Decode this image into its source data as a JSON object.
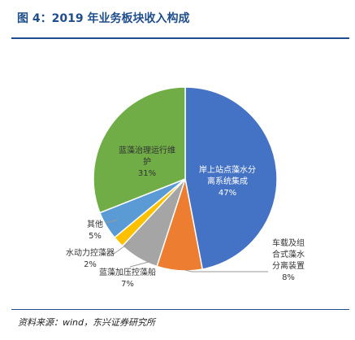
{
  "figure": {
    "title": "图 4：2019 年业务板块收入构成",
    "source": "资料来源：wind，东兴证券研究所"
  },
  "chart_data": {
    "type": "pie",
    "title": "",
    "slices": [
      {
        "name": "岸上站点藻水分离系统集成",
        "value": 47,
        "value_label": "47%",
        "color": "#4472C4",
        "label_lines": [
          "岸上站点藻水分",
          "离系统集成",
          "47%"
        ],
        "label_color": "#ffffff"
      },
      {
        "name": "车载及组合式藻水分离装置",
        "value": 8,
        "value_label": "8%",
        "color": "#ED7D31",
        "label_lines": [
          "车载及组",
          "合式藻水",
          "分离装置",
          "8%"
        ],
        "label_color": "#333333"
      },
      {
        "name": "蓝藻加压控藻船",
        "value": 7,
        "value_label": "7%",
        "color": "#A5A5A5",
        "label_lines": [
          "蓝藻加压控藻船",
          "7%"
        ],
        "label_color": "#333333"
      },
      {
        "name": "水动力控藻器",
        "value": 2,
        "value_label": "2%",
        "color": "#FFC000",
        "label_lines": [
          "水动力控藻器",
          "2%"
        ],
        "label_color": "#333333"
      },
      {
        "name": "其他",
        "value": 5,
        "value_label": "5%",
        "color": "#5B9BD5",
        "label_lines": [
          "其他",
          "5%"
        ],
        "label_color": "#333333"
      },
      {
        "name": "蓝藻治理运行维护",
        "value": 31,
        "value_label": "31%",
        "color": "#70AD47",
        "label_lines": [
          "蓝藻治理运行维",
          "护",
          "31%"
        ],
        "label_color": "#333333"
      }
    ]
  }
}
